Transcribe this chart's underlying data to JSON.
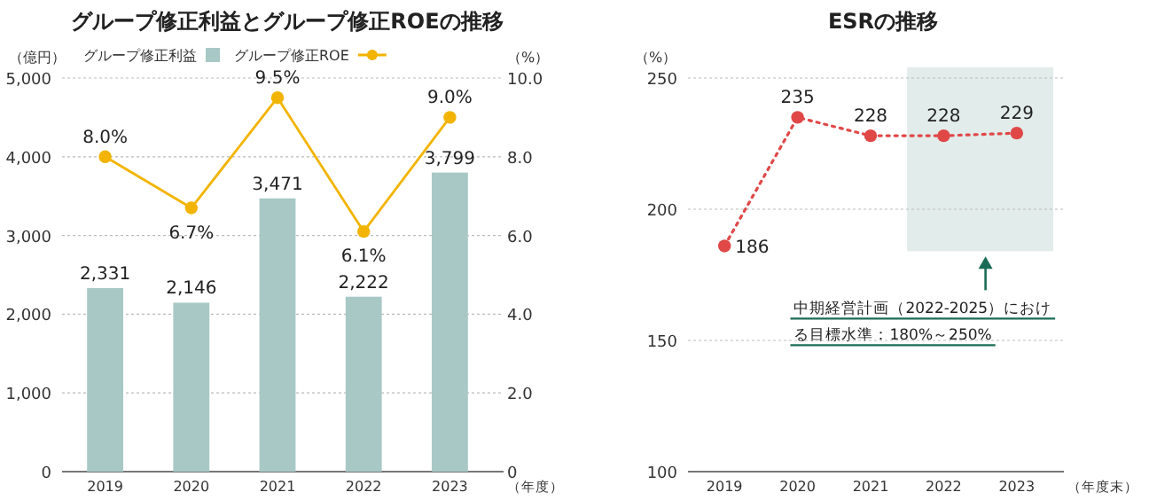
{
  "chart_data": [
    {
      "type": "bar",
      "title": "グループ修正利益とグループ修正ROEの推移",
      "ylabel": "（億円）",
      "y2label": "（%）",
      "xlabel": "（年度）",
      "categories": [
        "2019",
        "2020",
        "2021",
        "2022",
        "2023"
      ],
      "series": [
        {
          "name": "グループ修正利益",
          "color": "#a8c8c6",
          "values": [
            2331,
            2146,
            3471,
            2222,
            3799
          ],
          "value_labels": [
            "2,331",
            "2,146",
            "3,471",
            "2,222",
            "3,799"
          ]
        },
        {
          "name": "グループ修正ROE",
          "type": "line",
          "axis": "y2",
          "color": "#f2b400",
          "marker": "circle",
          "values": [
            8.0,
            6.7,
            9.5,
            6.1,
            9.0
          ],
          "value_labels": [
            "8.0%",
            "6.7%",
            "9.5%",
            "6.1%",
            "9.0%"
          ]
        }
      ],
      "ylim": [
        0,
        5000
      ],
      "yticks": [
        {
          "value": 0,
          "label": "0"
        },
        {
          "value": 1000,
          "label": "1,000"
        },
        {
          "value": 2000,
          "label": "2,000"
        },
        {
          "value": 3000,
          "label": "3,000"
        },
        {
          "value": 4000,
          "label": "4,000"
        },
        {
          "value": 5000,
          "label": "5,000"
        }
      ],
      "y2lim": [
        0,
        10
      ],
      "y2ticks": [
        0,
        {
          "value": 2,
          "label": "2.0"
        },
        {
          "value": 4,
          "label": "4.0"
        },
        {
          "value": 6,
          "label": "6.0"
        },
        {
          "value": 8,
          "label": "8.0"
        },
        {
          "value": 10,
          "label": "10.0"
        }
      ],
      "grid": "y",
      "legend": "top"
    },
    {
      "type": "line",
      "title": "ESRの推移",
      "ylabel": "（%）",
      "xlabel": "（年度末）",
      "categories": [
        "2019",
        "2020",
        "2021",
        "2022",
        "2023"
      ],
      "series": [
        {
          "color": "#e04848",
          "values": [
            186,
            235,
            228,
            228,
            229
          ]
        }
      ],
      "ylim": [
        100,
        250
      ],
      "yticks": [
        100,
        150,
        200,
        250
      ],
      "marker": "circle",
      "line_style": "dotted",
      "data_labels": true,
      "grid": "y",
      "bands": [
        {
          "axis": "x",
          "from": "2022",
          "to": "2023",
          "color": "#e2ecea",
          "label": "中期経営計画（2022-2025）における目標水準：180%～250%"
        }
      ]
    }
  ]
}
